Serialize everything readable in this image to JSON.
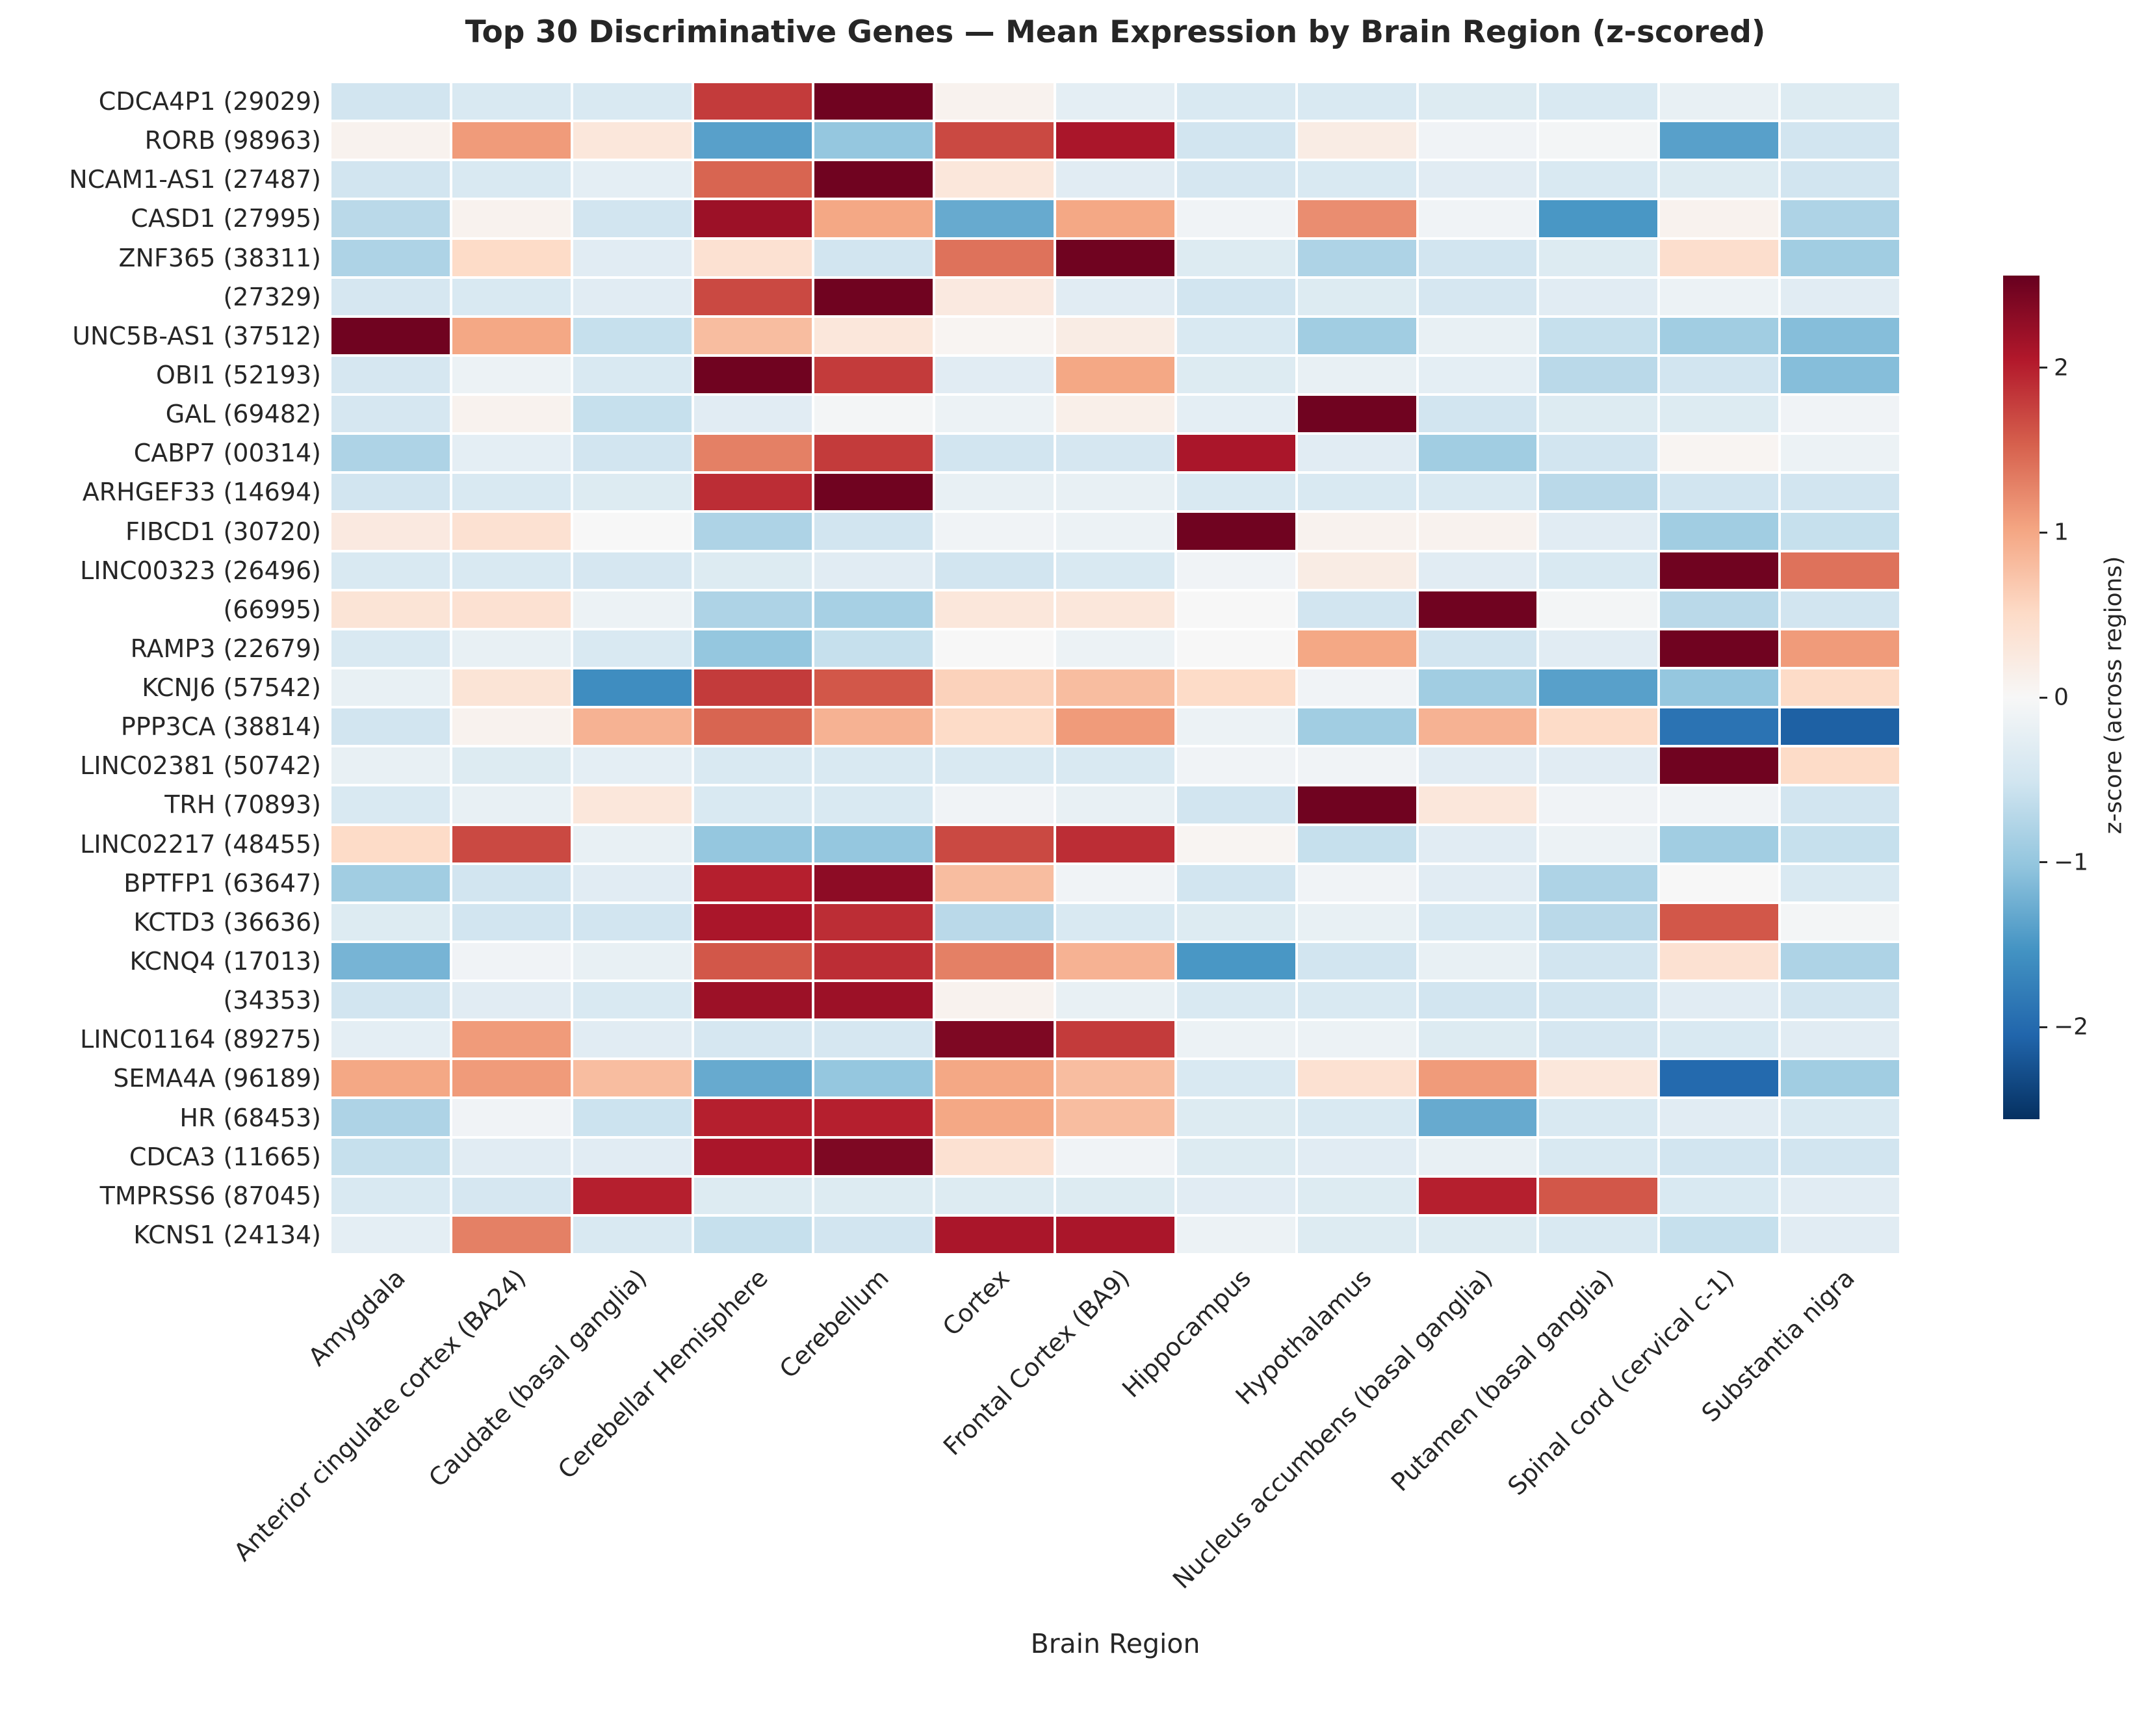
{
  "figure": {
    "background": "#ffffff",
    "text_color": "#262626"
  },
  "chart_data": {
    "type": "heatmap",
    "title": "Top 30 Discriminative Genes — Mean Expression by Brain Region (z-scored)",
    "xlabel": "Brain Region",
    "ylabel": "",
    "legend_position": "right",
    "grid": false,
    "rows": [
      "CDCA4P1 (29029)",
      "RORB (98963)",
      "NCAM1-AS1 (27487)",
      "CASD1 (27995)",
      "ZNF365 (38311)",
      "(27329)",
      "UNC5B-AS1 (37512)",
      "OBI1 (52193)",
      "GAL (69482)",
      "CABP7 (00314)",
      "ARHGEF33 (14694)",
      "FIBCD1 (30720)",
      "LINC00323 (26496)",
      "(66995)",
      "RAMP3 (22679)",
      "KCNJ6 (57542)",
      "PPP3CA (38814)",
      "LINC02381 (50742)",
      "TRH (70893)",
      "LINC02217 (48455)",
      "BPTFP1 (63647)",
      "KCTD3 (36636)",
      "KCNQ4 (17013)",
      "(34353)",
      "LINC01164 (89275)",
      "SEMA4A (96189)",
      "HR (68453)",
      "CDCA3 (11665)",
      "TMPRSS6 (87045)",
      "KCNS1 (24134)"
    ],
    "columns": [
      "Amygdala",
      "Anterior cingulate cortex (BA24)",
      "Caudate (basal ganglia)",
      "Cerebellar Hemisphere",
      "Cerebellum",
      "Cortex",
      "Frontal Cortex (BA9)",
      "Hippocampus",
      "Hypothalamus",
      "Nucleus accumbens (basal ganglia)",
      "Putamen (basal ganglia)",
      "Spinal cord (cervical c-1)",
      "Substantia nigra"
    ],
    "values": [
      [
        -0.5,
        -0.4,
        -0.4,
        1.8,
        2.5,
        0.1,
        -0.25,
        -0.4,
        -0.4,
        -0.35,
        -0.4,
        -0.2,
        -0.35
      ],
      [
        0.1,
        1.1,
        0.3,
        -1.4,
        -1.0,
        1.7,
        2.1,
        -0.5,
        0.2,
        -0.1,
        -0.05,
        -1.4,
        -0.5
      ],
      [
        -0.5,
        -0.4,
        -0.25,
        1.5,
        2.5,
        0.3,
        -0.3,
        -0.45,
        -0.4,
        -0.3,
        -0.4,
        -0.35,
        -0.5
      ],
      [
        -0.7,
        0.1,
        -0.5,
        2.2,
        1.0,
        -1.3,
        1.0,
        -0.1,
        1.2,
        -0.1,
        -1.5,
        0.1,
        -0.8
      ],
      [
        -0.8,
        0.5,
        -0.3,
        0.4,
        -0.5,
        1.4,
        2.5,
        -0.35,
        -0.8,
        -0.5,
        -0.35,
        0.45,
        -0.9
      ],
      [
        -0.45,
        -0.4,
        -0.3,
        1.7,
        2.5,
        0.25,
        -0.3,
        -0.5,
        -0.35,
        -0.45,
        -0.3,
        -0.15,
        -0.3
      ],
      [
        2.5,
        1.0,
        -0.6,
        0.8,
        0.3,
        0.05,
        0.2,
        -0.4,
        -0.9,
        -0.2,
        -0.6,
        -0.9,
        -1.1
      ],
      [
        -0.45,
        -0.15,
        -0.4,
        2.5,
        1.8,
        -0.3,
        1.0,
        -0.35,
        -0.2,
        -0.25,
        -0.7,
        -0.5,
        -1.1
      ],
      [
        -0.45,
        0.1,
        -0.6,
        -0.3,
        -0.05,
        -0.15,
        0.15,
        -0.25,
        2.5,
        -0.5,
        -0.35,
        -0.35,
        -0.1
      ],
      [
        -0.8,
        -0.25,
        -0.5,
        1.3,
        1.8,
        -0.5,
        -0.45,
        2.1,
        -0.3,
        -0.9,
        -0.5,
        0.05,
        -0.15
      ],
      [
        -0.5,
        -0.4,
        -0.35,
        1.9,
        2.5,
        -0.2,
        -0.2,
        -0.4,
        -0.4,
        -0.4,
        -0.7,
        -0.5,
        -0.5
      ],
      [
        0.25,
        0.4,
        0.0,
        -0.8,
        -0.5,
        -0.1,
        -0.15,
        2.5,
        0.1,
        0.1,
        -0.3,
        -0.9,
        -0.6
      ],
      [
        -0.4,
        -0.4,
        -0.45,
        -0.35,
        -0.3,
        -0.5,
        -0.4,
        -0.1,
        0.2,
        -0.3,
        -0.4,
        2.5,
        1.4
      ],
      [
        0.35,
        0.4,
        -0.15,
        -0.8,
        -0.85,
        0.3,
        0.3,
        0.0,
        -0.5,
        2.5,
        -0.05,
        -0.7,
        -0.5
      ],
      [
        -0.4,
        -0.2,
        -0.4,
        -1.0,
        -0.6,
        0.0,
        -0.15,
        0.0,
        1.0,
        -0.5,
        -0.3,
        2.5,
        1.1
      ],
      [
        -0.2,
        0.35,
        -1.6,
        1.8,
        1.6,
        0.6,
        0.8,
        0.5,
        -0.1,
        -0.9,
        -1.4,
        -1.0,
        0.5
      ],
      [
        -0.5,
        0.1,
        0.9,
        1.5,
        0.9,
        0.5,
        1.1,
        -0.15,
        -0.9,
        0.9,
        0.5,
        -1.9,
        -2.1
      ],
      [
        -0.2,
        -0.35,
        -0.25,
        -0.4,
        -0.4,
        -0.4,
        -0.4,
        -0.1,
        -0.1,
        -0.3,
        -0.3,
        2.5,
        0.5
      ],
      [
        -0.4,
        -0.2,
        0.3,
        -0.4,
        -0.4,
        -0.1,
        -0.2,
        -0.5,
        2.5,
        0.3,
        -0.1,
        -0.1,
        -0.5
      ],
      [
        0.5,
        1.7,
        -0.2,
        -1.0,
        -1.0,
        1.7,
        1.9,
        0.05,
        -0.6,
        -0.3,
        -0.15,
        -0.9,
        -0.6
      ],
      [
        -0.9,
        -0.5,
        -0.3,
        2.0,
        2.3,
        0.8,
        -0.1,
        -0.5,
        -0.1,
        -0.3,
        -0.8,
        0.0,
        -0.4
      ],
      [
        -0.35,
        -0.5,
        -0.5,
        2.1,
        1.9,
        -0.7,
        -0.4,
        -0.35,
        -0.2,
        -0.4,
        -0.7,
        1.6,
        -0.05
      ],
      [
        -1.2,
        -0.1,
        -0.2,
        1.6,
        1.9,
        1.3,
        0.9,
        -1.5,
        -0.5,
        -0.2,
        -0.5,
        0.4,
        -0.8
      ],
      [
        -0.5,
        -0.3,
        -0.4,
        2.2,
        2.2,
        0.1,
        -0.2,
        -0.4,
        -0.4,
        -0.5,
        -0.5,
        -0.3,
        -0.5
      ],
      [
        -0.25,
        1.1,
        -0.3,
        -0.45,
        -0.45,
        2.4,
        1.8,
        -0.15,
        -0.15,
        -0.35,
        -0.45,
        -0.4,
        -0.3
      ],
      [
        1.0,
        1.1,
        0.8,
        -1.3,
        -1.0,
        1.0,
        0.8,
        -0.4,
        0.4,
        1.1,
        0.3,
        -2.0,
        -0.9
      ],
      [
        -0.8,
        -0.1,
        -0.55,
        2.0,
        2.0,
        1.0,
        0.8,
        -0.35,
        -0.4,
        -1.3,
        -0.4,
        -0.3,
        -0.4
      ],
      [
        -0.6,
        -0.3,
        -0.3,
        2.1,
        2.4,
        0.4,
        -0.1,
        -0.35,
        -0.3,
        -0.2,
        -0.4,
        -0.5,
        -0.5
      ],
      [
        -0.4,
        -0.45,
        2.0,
        -0.35,
        -0.35,
        -0.35,
        -0.35,
        -0.3,
        -0.35,
        2.0,
        1.6,
        -0.4,
        -0.3
      ],
      [
        -0.25,
        1.3,
        -0.4,
        -0.6,
        -0.5,
        2.1,
        2.1,
        -0.15,
        -0.35,
        -0.35,
        -0.4,
        -0.6,
        -0.3
      ]
    ],
    "zlim": [
      -2.56,
      2.56
    ],
    "colormap": {
      "name": "RdBu_r",
      "anchors": [
        "#053061",
        "#2166ac",
        "#4393c3",
        "#92c5de",
        "#d1e5f0",
        "#f7f7f7",
        "#fddbc7",
        "#f4a582",
        "#d6604d",
        "#b2182b",
        "#67001f"
      ]
    },
    "colorbar": {
      "label": "z-score (across regions)",
      "ticks": [
        2,
        1,
        0,
        -1,
        -2
      ],
      "tick_labels": [
        "2",
        "1",
        "0",
        "−1",
        "−2"
      ]
    }
  }
}
